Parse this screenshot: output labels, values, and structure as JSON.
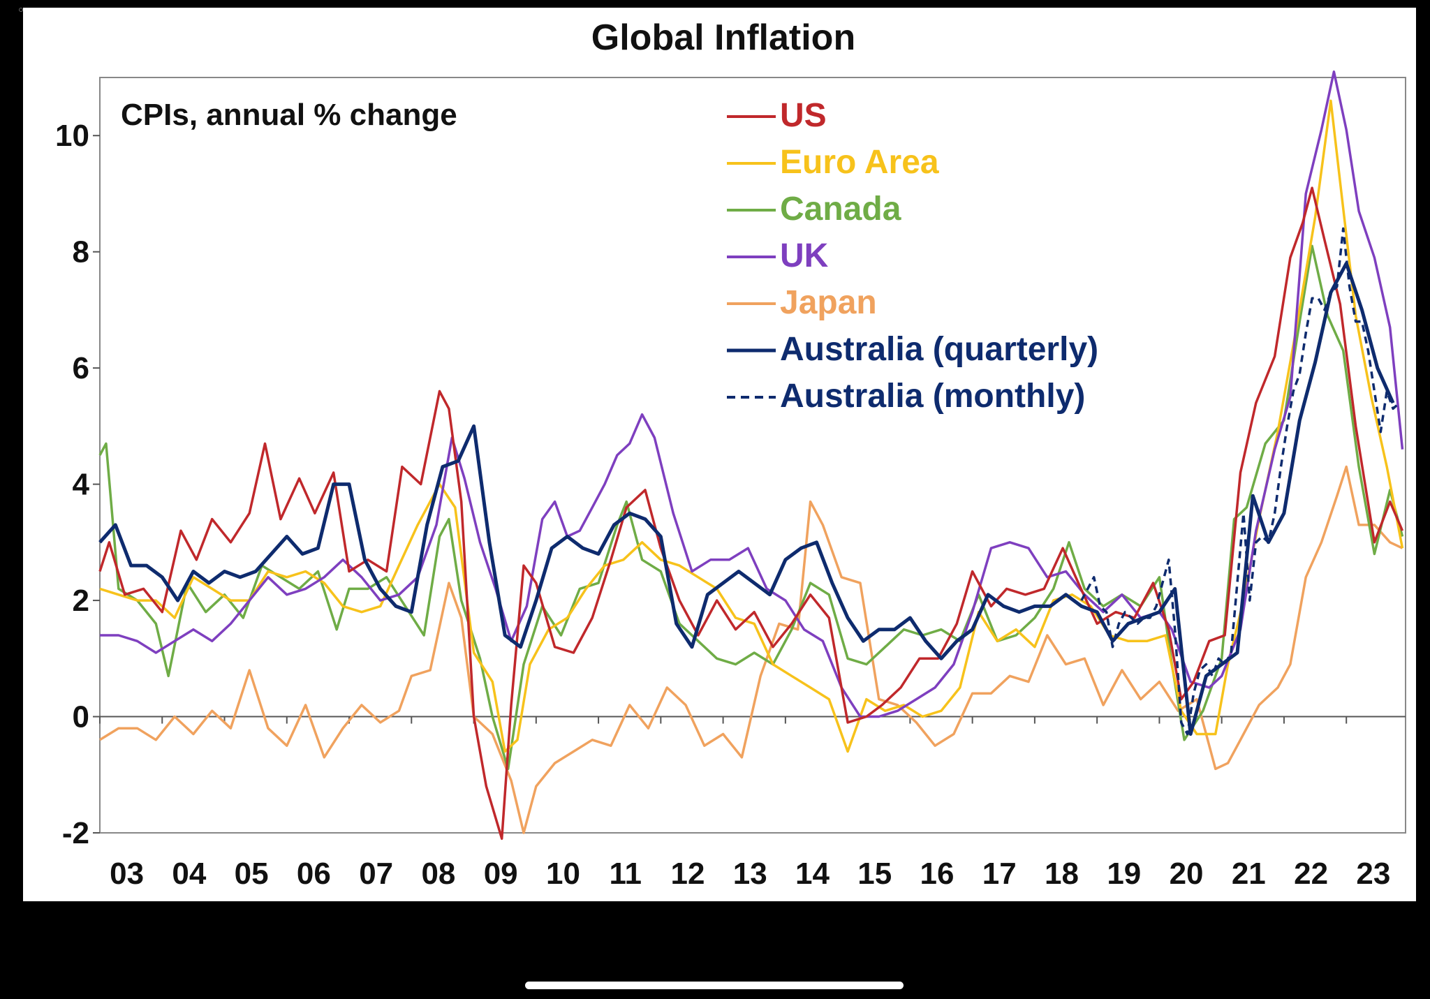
{
  "chart_data": {
    "type": "line",
    "title": "Global Inflation",
    "subtitle": "CPIs, annual % change",
    "xlabel": "",
    "ylabel": "",
    "ylim": [
      -2,
      11
    ],
    "yticks": [
      -2,
      0,
      2,
      4,
      6,
      8,
      10
    ],
    "xlim": [
      2003.0,
      2023.95
    ],
    "xtick_labels": [
      "03",
      "04",
      "05",
      "06",
      "07",
      "08",
      "09",
      "10",
      "11",
      "12",
      "13",
      "14",
      "15",
      "16",
      "17",
      "18",
      "19",
      "20",
      "21",
      "22",
      "23"
    ],
    "grid": false,
    "legend_position": "top-center",
    "series": [
      {
        "name": "US",
        "color": "#C0282B",
        "style": "solid",
        "x": [
          2003.0,
          2003.15,
          2003.4,
          2003.7,
          2004.0,
          2004.3,
          2004.55,
          2004.8,
          2005.1,
          2005.4,
          2005.65,
          2005.9,
          2006.2,
          2006.45,
          2006.75,
          2007.0,
          2007.3,
          2007.6,
          2007.85,
          2008.15,
          2008.45,
          2008.6,
          2008.8,
          2009.0,
          2009.2,
          2009.45,
          2009.6,
          2009.8,
          2010.0,
          2010.3,
          2010.6,
          2010.9,
          2011.2,
          2011.45,
          2011.75,
          2012.0,
          2012.3,
          2012.6,
          2012.9,
          2013.2,
          2013.5,
          2013.8,
          2014.1,
          2014.4,
          2014.7,
          2015.0,
          2015.3,
          2015.55,
          2015.85,
          2016.15,
          2016.45,
          2016.75,
          2017.0,
          2017.3,
          2017.55,
          2017.85,
          2018.15,
          2018.45,
          2018.7,
          2019.0,
          2019.3,
          2019.6,
          2019.9,
          2020.15,
          2020.35,
          2020.55,
          2020.8,
          2021.05,
          2021.3,
          2021.55,
          2021.85,
          2022.1,
          2022.3,
          2022.45,
          2022.65,
          2022.9,
          2023.15,
          2023.45,
          2023.7,
          2023.9
        ],
        "values": [
          2.5,
          3.0,
          2.1,
          2.2,
          1.8,
          3.2,
          2.7,
          3.4,
          3.0,
          3.5,
          4.7,
          3.4,
          4.1,
          3.5,
          4.2,
          2.5,
          2.7,
          2.5,
          4.3,
          4.0,
          5.6,
          5.3,
          3.7,
          0.0,
          -1.2,
          -2.1,
          0.2,
          2.6,
          2.3,
          1.2,
          1.1,
          1.7,
          2.7,
          3.6,
          3.9,
          2.9,
          2.0,
          1.4,
          2.0,
          1.5,
          1.8,
          1.2,
          1.6,
          2.1,
          1.7,
          -0.1,
          0.0,
          0.2,
          0.5,
          1.0,
          1.0,
          1.6,
          2.5,
          1.9,
          2.2,
          2.1,
          2.2,
          2.9,
          2.3,
          1.6,
          1.8,
          1.7,
          2.3,
          1.5,
          0.3,
          0.6,
          1.3,
          1.4,
          4.2,
          5.4,
          6.2,
          7.9,
          8.5,
          9.1,
          8.2,
          7.1,
          5.0,
          3.0,
          3.7,
          3.2
        ]
      },
      {
        "name": "Euro Area",
        "color": "#F7C21B",
        "style": "solid",
        "x": [
          2003.0,
          2003.3,
          2003.6,
          2003.9,
          2004.2,
          2004.5,
          2004.8,
          2005.1,
          2005.4,
          2005.7,
          2006.0,
          2006.3,
          2006.6,
          2006.9,
          2007.2,
          2007.5,
          2007.8,
          2008.1,
          2008.45,
          2008.7,
          2009.0,
          2009.3,
          2009.5,
          2009.7,
          2009.9,
          2010.2,
          2010.5,
          2010.8,
          2011.1,
          2011.4,
          2011.7,
          2012.0,
          2012.3,
          2012.6,
          2012.9,
          2013.2,
          2013.5,
          2013.8,
          2014.1,
          2014.4,
          2014.7,
          2015.0,
          2015.3,
          2015.6,
          2015.9,
          2016.2,
          2016.5,
          2016.8,
          2017.1,
          2017.4,
          2017.7,
          2018.0,
          2018.3,
          2018.6,
          2018.9,
          2019.2,
          2019.5,
          2019.8,
          2020.1,
          2020.35,
          2020.6,
          2020.9,
          2021.1,
          2021.35,
          2021.6,
          2021.9,
          2022.2,
          2022.5,
          2022.75,
          2022.9,
          2023.15,
          2023.4,
          2023.65,
          2023.9
        ],
        "values": [
          2.2,
          2.1,
          2.0,
          2.0,
          1.7,
          2.4,
          2.2,
          2.0,
          2.0,
          2.5,
          2.4,
          2.5,
          2.3,
          1.9,
          1.8,
          1.9,
          2.6,
          3.3,
          4.0,
          3.6,
          1.1,
          0.6,
          -0.6,
          -0.4,
          0.9,
          1.5,
          1.7,
          2.2,
          2.6,
          2.7,
          3.0,
          2.7,
          2.6,
          2.4,
          2.2,
          1.7,
          1.6,
          0.9,
          0.7,
          0.5,
          0.3,
          -0.6,
          0.3,
          0.1,
          0.2,
          0.0,
          0.1,
          0.5,
          1.8,
          1.3,
          1.5,
          1.2,
          2.0,
          2.1,
          1.9,
          1.4,
          1.3,
          1.3,
          1.4,
          0.1,
          -0.3,
          -0.3,
          0.9,
          2.0,
          3.4,
          4.9,
          6.7,
          8.6,
          10.6,
          9.2,
          6.9,
          5.5,
          4.3,
          2.9
        ]
      },
      {
        "name": "Canada",
        "color": "#6FAC46",
        "style": "solid",
        "x": [
          2003.0,
          2003.1,
          2003.3,
          2003.6,
          2003.9,
          2004.1,
          2004.4,
          2004.7,
          2005.0,
          2005.3,
          2005.6,
          2005.9,
          2006.2,
          2006.5,
          2006.8,
          2007.0,
          2007.3,
          2007.6,
          2007.9,
          2008.2,
          2008.45,
          2008.6,
          2008.8,
          2009.1,
          2009.3,
          2009.55,
          2009.8,
          2010.1,
          2010.4,
          2010.7,
          2011.0,
          2011.3,
          2011.45,
          2011.7,
          2012.0,
          2012.3,
          2012.6,
          2012.9,
          2013.2,
          2013.5,
          2013.8,
          2014.1,
          2014.4,
          2014.7,
          2015.0,
          2015.3,
          2015.6,
          2015.9,
          2016.2,
          2016.5,
          2016.8,
          2017.1,
          2017.4,
          2017.7,
          2018.0,
          2018.3,
          2018.55,
          2018.8,
          2019.1,
          2019.4,
          2019.7,
          2020.0,
          2020.2,
          2020.4,
          2020.7,
          2021.0,
          2021.2,
          2021.4,
          2021.7,
          2022.0,
          2022.25,
          2022.45,
          2022.7,
          2022.95,
          2023.2,
          2023.45,
          2023.7,
          2023.9
        ],
        "values": [
          4.5,
          4.7,
          2.2,
          2.0,
          1.6,
          0.7,
          2.3,
          1.8,
          2.1,
          1.7,
          2.6,
          2.4,
          2.2,
          2.5,
          1.5,
          2.2,
          2.2,
          2.4,
          1.9,
          1.4,
          3.1,
          3.4,
          2.0,
          1.0,
          0.0,
          -0.9,
          0.9,
          1.9,
          1.4,
          2.2,
          2.3,
          3.3,
          3.7,
          2.7,
          2.5,
          1.6,
          1.3,
          1.0,
          0.9,
          1.1,
          0.9,
          1.5,
          2.3,
          2.1,
          1.0,
          0.9,
          1.2,
          1.5,
          1.4,
          1.5,
          1.3,
          2.1,
          1.3,
          1.4,
          1.7,
          2.2,
          3.0,
          2.2,
          1.9,
          2.1,
          1.9,
          2.4,
          0.9,
          -0.4,
          0.1,
          1.0,
          3.4,
          3.6,
          4.7,
          5.1,
          6.8,
          8.1,
          6.9,
          6.3,
          4.3,
          2.8,
          3.9,
          3.1
        ]
      },
      {
        "name": "UK",
        "color": "#7E3FBF",
        "style": "solid",
        "x": [
          2003.0,
          2003.3,
          2003.6,
          2003.9,
          2004.2,
          2004.5,
          2004.8,
          2005.1,
          2005.4,
          2005.7,
          2006.0,
          2006.3,
          2006.6,
          2006.9,
          2007.2,
          2007.5,
          2007.8,
          2008.1,
          2008.4,
          2008.65,
          2008.85,
          2009.1,
          2009.35,
          2009.6,
          2009.85,
          2010.1,
          2010.3,
          2010.5,
          2010.7,
          2010.9,
          2011.1,
          2011.3,
          2011.5,
          2011.7,
          2011.9,
          2012.2,
          2012.5,
          2012.8,
          2013.1,
          2013.4,
          2013.7,
          2014.0,
          2014.3,
          2014.6,
          2014.9,
          2015.2,
          2015.5,
          2015.8,
          2016.1,
          2016.4,
          2016.7,
          2017.0,
          2017.3,
          2017.6,
          2017.9,
          2018.2,
          2018.5,
          2018.8,
          2019.1,
          2019.4,
          2019.7,
          2020.0,
          2020.2,
          2020.5,
          2020.8,
          2021.0,
          2021.3,
          2021.55,
          2021.85,
          2022.1,
          2022.35,
          2022.6,
          2022.8,
          2023.0,
          2023.2,
          2023.45,
          2023.7,
          2023.9
        ],
        "values": [
          1.4,
          1.4,
          1.3,
          1.1,
          1.3,
          1.5,
          1.3,
          1.6,
          2.0,
          2.4,
          2.1,
          2.2,
          2.4,
          2.7,
          2.4,
          2.0,
          2.1,
          2.4,
          3.3,
          4.8,
          4.1,
          3.0,
          2.2,
          1.3,
          1.9,
          3.4,
          3.7,
          3.1,
          3.2,
          3.6,
          4.0,
          4.5,
          4.7,
          5.2,
          4.8,
          3.5,
          2.5,
          2.7,
          2.7,
          2.9,
          2.2,
          2.0,
          1.5,
          1.3,
          0.5,
          0.0,
          0.0,
          0.1,
          0.3,
          0.5,
          0.9,
          1.8,
          2.9,
          3.0,
          2.9,
          2.4,
          2.5,
          2.1,
          1.8,
          2.1,
          1.7,
          1.8,
          1.5,
          0.6,
          0.5,
          0.7,
          1.5,
          3.2,
          4.6,
          5.5,
          9.0,
          10.1,
          11.1,
          10.1,
          8.7,
          7.9,
          6.7,
          4.6
        ]
      },
      {
        "name": "Japan",
        "color": "#F0A25E",
        "style": "solid",
        "x": [
          2003.0,
          2003.3,
          2003.6,
          2003.9,
          2004.2,
          2004.5,
          2004.8,
          2005.1,
          2005.4,
          2005.7,
          2006.0,
          2006.3,
          2006.6,
          2006.9,
          2007.2,
          2007.5,
          2007.8,
          2008.0,
          2008.3,
          2008.6,
          2008.8,
          2009.0,
          2009.3,
          2009.6,
          2009.8,
          2010.0,
          2010.3,
          2010.6,
          2010.9,
          2011.2,
          2011.5,
          2011.8,
          2012.1,
          2012.4,
          2012.7,
          2013.0,
          2013.3,
          2013.6,
          2013.9,
          2014.2,
          2014.4,
          2014.6,
          2014.9,
          2015.2,
          2015.5,
          2015.8,
          2016.1,
          2016.4,
          2016.7,
          2017.0,
          2017.3,
          2017.6,
          2017.9,
          2018.2,
          2018.5,
          2018.8,
          2019.1,
          2019.4,
          2019.7,
          2020.0,
          2020.3,
          2020.6,
          2020.9,
          2021.1,
          2021.3,
          2021.6,
          2021.9,
          2022.1,
          2022.35,
          2022.6,
          2022.85,
          2023.0,
          2023.2,
          2023.45,
          2023.7,
          2023.9
        ],
        "values": [
          -0.4,
          -0.2,
          -0.2,
          -0.4,
          0.0,
          -0.3,
          0.1,
          -0.2,
          0.8,
          -0.2,
          -0.5,
          0.2,
          -0.7,
          -0.2,
          0.2,
          -0.1,
          0.1,
          0.7,
          0.8,
          2.3,
          1.7,
          0.0,
          -0.3,
          -1.1,
          -2.0,
          -1.2,
          -0.8,
          -0.6,
          -0.4,
          -0.5,
          0.2,
          -0.2,
          0.5,
          0.2,
          -0.5,
          -0.3,
          -0.7,
          0.7,
          1.6,
          1.5,
          3.7,
          3.3,
          2.4,
          2.3,
          0.3,
          0.2,
          -0.1,
          -0.5,
          -0.3,
          0.4,
          0.4,
          0.7,
          0.6,
          1.4,
          0.9,
          1.0,
          0.2,
          0.8,
          0.3,
          0.6,
          0.1,
          0.3,
          -0.9,
          -0.8,
          -0.4,
          0.2,
          0.5,
          0.9,
          2.4,
          3.0,
          3.8,
          4.3,
          3.3,
          3.3,
          3.0,
          2.9
        ]
      },
      {
        "name": "Australia (quarterly)",
        "color": "#0E2B6E",
        "style": "solid",
        "x": [
          2003.0,
          2003.25,
          2003.5,
          2003.75,
          2004.0,
          2004.25,
          2004.5,
          2004.75,
          2005.0,
          2005.25,
          2005.5,
          2005.75,
          2006.0,
          2006.25,
          2006.5,
          2006.75,
          2007.0,
          2007.25,
          2007.5,
          2007.75,
          2008.0,
          2008.25,
          2008.5,
          2008.75,
          2009.0,
          2009.25,
          2009.5,
          2009.75,
          2010.0,
          2010.25,
          2010.5,
          2010.75,
          2011.0,
          2011.25,
          2011.5,
          2011.75,
          2012.0,
          2012.25,
          2012.5,
          2012.75,
          2013.0,
          2013.25,
          2013.5,
          2013.75,
          2014.0,
          2014.25,
          2014.5,
          2014.75,
          2015.0,
          2015.25,
          2015.5,
          2015.75,
          2016.0,
          2016.25,
          2016.5,
          2016.75,
          2017.0,
          2017.25,
          2017.5,
          2017.75,
          2018.0,
          2018.25,
          2018.5,
          2018.75,
          2019.0,
          2019.25,
          2019.5,
          2019.75,
          2020.0,
          2020.25,
          2020.5,
          2020.75,
          2021.0,
          2021.25,
          2021.5,
          2021.75,
          2022.0,
          2022.25,
          2022.5,
          2022.75,
          2023.0,
          2023.25,
          2023.5,
          2023.75
        ],
        "values": [
          3.0,
          3.3,
          2.6,
          2.6,
          2.4,
          2.0,
          2.5,
          2.3,
          2.5,
          2.4,
          2.5,
          2.8,
          3.1,
          2.8,
          2.9,
          4.0,
          4.0,
          2.7,
          2.2,
          1.9,
          1.8,
          3.3,
          4.3,
          4.4,
          5.0,
          3.0,
          1.4,
          1.2,
          2.0,
          2.9,
          3.1,
          2.9,
          2.8,
          3.3,
          3.5,
          3.4,
          3.1,
          1.6,
          1.2,
          2.1,
          2.3,
          2.5,
          2.3,
          2.1,
          2.7,
          2.9,
          3.0,
          2.3,
          1.7,
          1.3,
          1.5,
          1.5,
          1.7,
          1.3,
          1.0,
          1.3,
          1.5,
          2.1,
          1.9,
          1.8,
          1.9,
          1.9,
          2.1,
          1.9,
          1.8,
          1.3,
          1.6,
          1.7,
          1.8,
          2.2,
          -0.3,
          0.7,
          0.9,
          1.1,
          3.8,
          3.0,
          3.5,
          5.1,
          6.1,
          7.3,
          7.8,
          7.0,
          6.0,
          5.4
        ]
      },
      {
        "name": "Australia (monthly)",
        "color": "#0E2B6E",
        "style": "dashed",
        "x": [
          2018.75,
          2018.85,
          2018.95,
          2019.05,
          2019.15,
          2019.25,
          2019.35,
          2019.45,
          2019.55,
          2019.65,
          2019.75,
          2019.85,
          2019.95,
          2020.05,
          2020.15,
          2020.25,
          2020.35,
          2020.45,
          2020.55,
          2020.65,
          2020.75,
          2020.85,
          2020.95,
          2021.05,
          2021.15,
          2021.25,
          2021.35,
          2021.45,
          2021.55,
          2021.65,
          2021.75,
          2021.85,
          2021.95,
          2022.05,
          2022.15,
          2022.25,
          2022.35,
          2022.45,
          2022.55,
          2022.65,
          2022.75,
          2022.85,
          2022.95,
          2023.05,
          2023.15,
          2023.25,
          2023.35,
          2023.45,
          2023.55,
          2023.65,
          2023.75,
          2023.85
        ],
        "values": [
          2.0,
          2.2,
          2.4,
          1.9,
          1.8,
          1.2,
          1.6,
          1.8,
          1.7,
          1.6,
          1.7,
          1.7,
          1.9,
          2.3,
          2.7,
          1.5,
          -0.1,
          -0.3,
          0.4,
          0.8,
          0.9,
          0.7,
          1.0,
          0.9,
          1.1,
          2.3,
          3.5,
          2.0,
          3.0,
          3.1,
          3.0,
          3.5,
          4.3,
          5.0,
          5.6,
          5.9,
          6.6,
          7.2,
          7.2,
          7.0,
          7.3,
          7.4,
          8.4,
          7.4,
          6.8,
          6.8,
          6.3,
          5.6,
          4.9,
          5.6,
          5.3,
          5.4
        ]
      }
    ]
  }
}
